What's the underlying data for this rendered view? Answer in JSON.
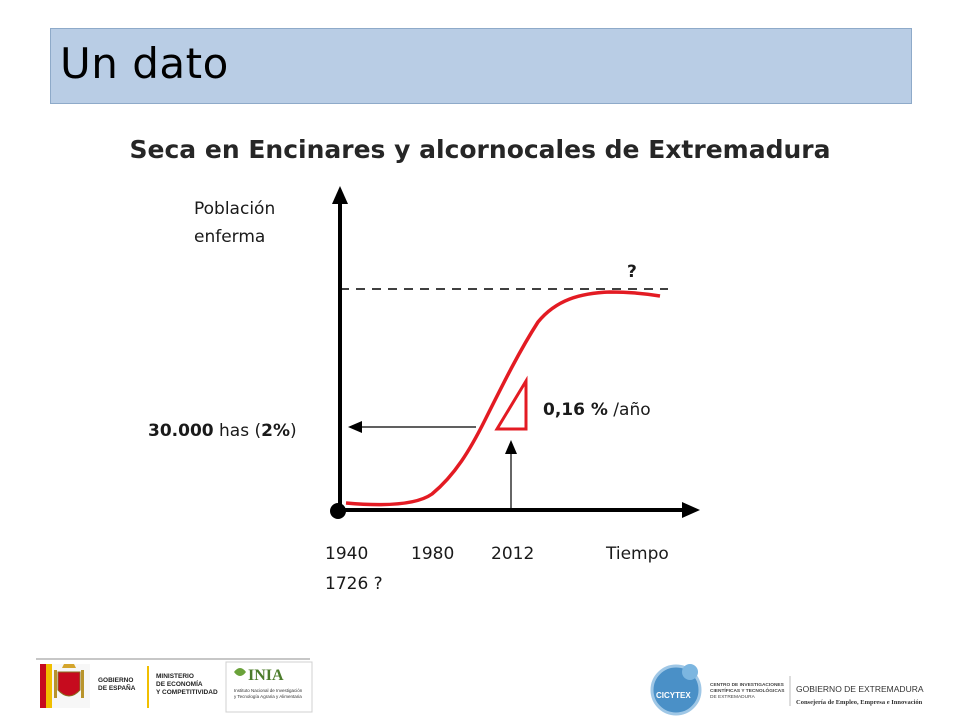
{
  "slide": {
    "title": "Un dato",
    "subtitle": "Seca en Encinares y alcornocales de Extremadura"
  },
  "diagram": {
    "y_axis_label_line1": "Población",
    "y_axis_label_line2": "enferma",
    "plateau_question": "?",
    "rate_value": "0,16 %",
    "rate_unit": " /año",
    "area_value": "30.000",
    "area_unit": " has (",
    "area_percent": "2%",
    "area_close": ")",
    "x_ticks": [
      "1940",
      "1980",
      "2012"
    ],
    "x_axis_label": "Tiempo",
    "origin_alt_label": "1726 ?",
    "curve_color": "#e31b23",
    "axis_color": "#000000"
  },
  "footer": {
    "logos": [
      "gobierno-de-espana-logo",
      "ministerio-economia-logo",
      "inia-logo",
      "cicytex-logo",
      "gobierno-extremadura-logo"
    ],
    "left_text": {
      "gobierno1": "GOBIERNO",
      "gobierno2": "DE ESPAÑA",
      "ministerio1": "MINISTERIO",
      "ministerio2": "DE ECONOMÍA",
      "ministerio3": "Y COMPETITIVIDAD",
      "inia": "INIA",
      "inia_sub1": "Instituto Nacional de Investigación",
      "inia_sub2": "y Tecnología Agraria y Alimentaria"
    },
    "right_text": {
      "cicytex": "CICYTEX",
      "centro1": "CENTRO DE INVESTIGACIONES",
      "centro2": "CIENTÍFICAS Y TECNOLÓGICAS",
      "centro3": "DE EXTREMADURA",
      "gob_ext": "GOBIERNO DE EXTREMADURA",
      "consejeria": "Consejería de Empleo, Empresa e Innovación"
    }
  }
}
